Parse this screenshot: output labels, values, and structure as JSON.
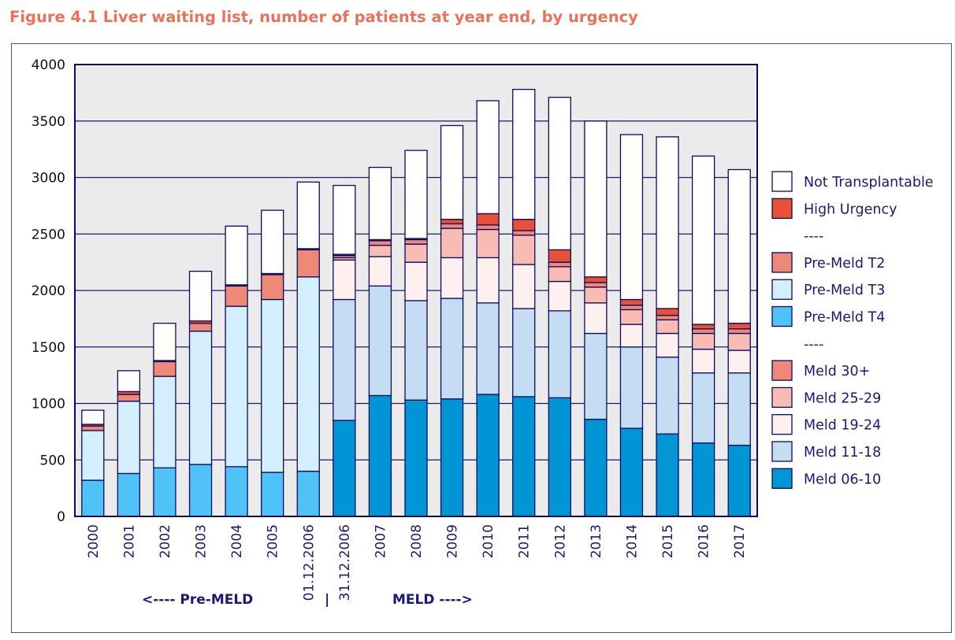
{
  "figure_title": "Figure 4.1 Liver waiting list, number of patients at year end, by urgency",
  "chart_data": {
    "type": "bar",
    "stacked": true,
    "title": "Figure 4.1 Liver waiting list, number of patients at year end, by urgency",
    "xlabel": "",
    "ylabel": "",
    "ylim": [
      0,
      4000
    ],
    "yticks": [
      0,
      500,
      1000,
      1500,
      2000,
      2500,
      3000,
      3500,
      4000
    ],
    "grid": "horizontal",
    "legend_position": "right",
    "categories": [
      "2000",
      "2001",
      "2002",
      "2003",
      "2004",
      "2005",
      "01.12.2006",
      "31.12.2006",
      "2007",
      "2008",
      "2009",
      "2010",
      "2011",
      "2012",
      "2013",
      "2014",
      "2015",
      "2016",
      "2017"
    ],
    "series": [
      {
        "name": "Pre-Meld T4",
        "color": "#4fc3f7",
        "values": [
          320,
          380,
          430,
          460,
          440,
          390,
          400,
          0,
          0,
          0,
          0,
          0,
          0,
          0,
          0,
          0,
          0,
          0,
          0
        ]
      },
      {
        "name": "Pre-Meld T3",
        "color": "#d4efff",
        "values": [
          440,
          640,
          810,
          1180,
          1420,
          1530,
          1720,
          0,
          0,
          0,
          0,
          0,
          0,
          0,
          0,
          0,
          0,
          0,
          0
        ]
      },
      {
        "name": "Pre-Meld T2",
        "color": "#f08878",
        "values": [
          40,
          60,
          130,
          70,
          180,
          220,
          240,
          0,
          0,
          0,
          0,
          0,
          0,
          0,
          0,
          0,
          0,
          0,
          0
        ]
      },
      {
        "name": "Meld 06-10",
        "color": "#0096d6",
        "values": [
          0,
          0,
          0,
          0,
          0,
          0,
          0,
          850,
          1070,
          1030,
          1040,
          1080,
          1060,
          1050,
          860,
          780,
          730,
          650,
          630
        ]
      },
      {
        "name": "Meld 11-18",
        "color": "#c5ddf2",
        "values": [
          0,
          0,
          0,
          0,
          0,
          0,
          0,
          1070,
          970,
          880,
          890,
          810,
          780,
          770,
          760,
          720,
          680,
          620,
          640
        ]
      },
      {
        "name": "Meld 19-24",
        "color": "#fff0f0",
        "values": [
          0,
          0,
          0,
          0,
          0,
          0,
          0,
          350,
          260,
          340,
          360,
          400,
          390,
          260,
          270,
          200,
          210,
          210,
          200
        ]
      },
      {
        "name": "Meld 25-29",
        "color": "#f9bcb4",
        "values": [
          0,
          0,
          0,
          0,
          0,
          0,
          0,
          20,
          100,
          160,
          260,
          250,
          260,
          130,
          140,
          130,
          120,
          140,
          150
        ]
      },
      {
        "name": "Meld 30+",
        "color": "#f08878",
        "values": [
          0,
          0,
          0,
          0,
          0,
          0,
          0,
          20,
          40,
          40,
          40,
          40,
          40,
          40,
          40,
          40,
          40,
          40,
          40
        ]
      },
      {
        "name": "High Urgency",
        "color": "#e8503a",
        "values": [
          15,
          25,
          10,
          20,
          10,
          10,
          10,
          10,
          10,
          10,
          40,
          100,
          100,
          110,
          50,
          50,
          60,
          40,
          50
        ]
      },
      {
        "name": "Not Transplantable",
        "color": "#ffffff",
        "values": [
          125,
          185,
          330,
          440,
          520,
          560,
          590,
          610,
          640,
          780,
          830,
          1000,
          1150,
          1350,
          1380,
          1460,
          1520,
          1490,
          1360
        ]
      }
    ],
    "legend_entries": [
      "Not Transplantable",
      "High Urgency",
      "----",
      "Pre-Meld T2",
      "Pre-Meld T3",
      "Pre-Meld T4",
      "----",
      "Meld 30+",
      "Meld 25-29",
      "Meld 19-24",
      "Meld 11-18",
      "Meld 06-10"
    ],
    "annotations": {
      "pre_meld": "<---- Pre-MELD",
      "divider": "|",
      "meld": "MELD ---->"
    }
  }
}
